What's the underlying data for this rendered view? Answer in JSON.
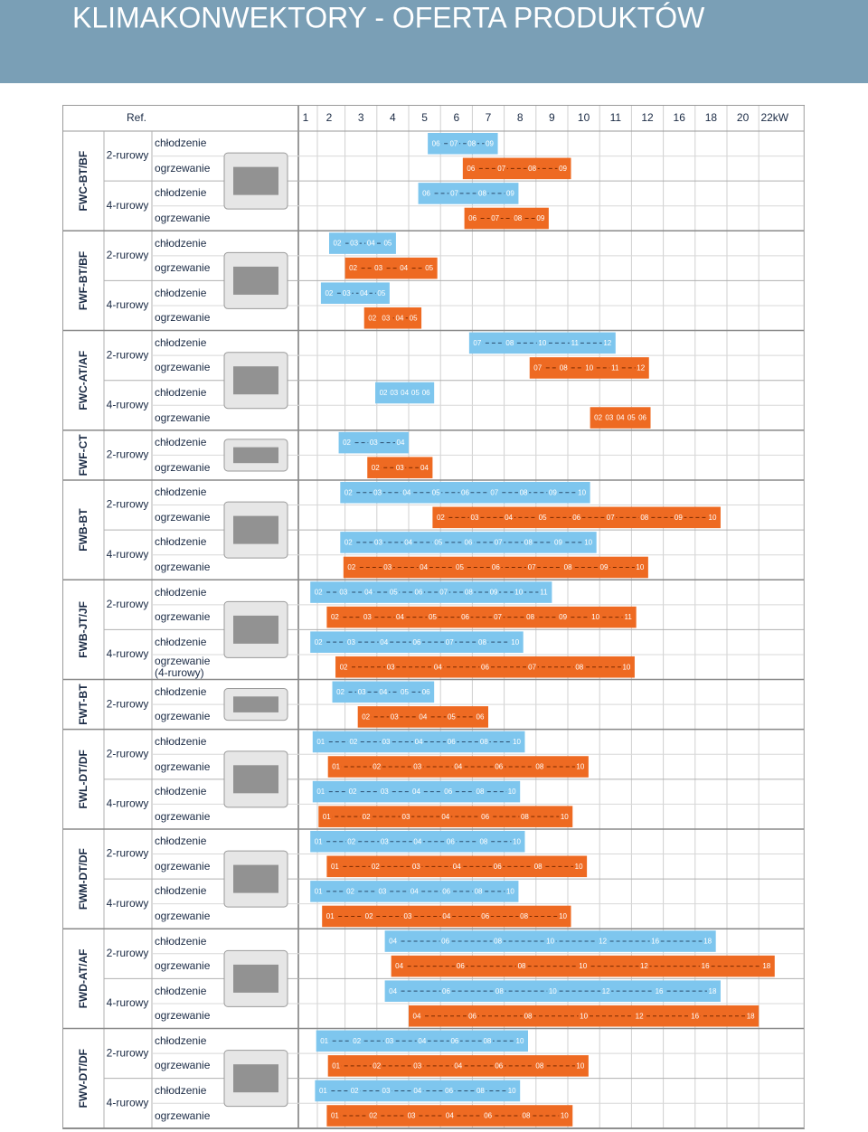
{
  "chart_data": {
    "type": "range",
    "title": "KLIMAKONWEKTORY - OFERTA PRODUKTÓW",
    "ref_label": "Ref.",
    "xticks": [
      1,
      2,
      3,
      4,
      5,
      6,
      7,
      8,
      9,
      10,
      11,
      12,
      16,
      18,
      20,
      {
        "value": 22,
        "label": "22kW"
      }
    ],
    "cooling_color": "#7ec6ee",
    "heating_color": "#ee6a22",
    "groups": [
      {
        "name": "FWC-BT/BF",
        "systems": [
          {
            "pipe": "2-rurowy",
            "rows": [
              {
                "mode": "chłodzenie",
                "range": [
                  5.1,
                  7.3
                ],
                "models": [
                  "06",
                  "07",
                  "08",
                  "09"
                ]
              },
              {
                "mode": "ogrzewanie",
                "range": [
                  6.2,
                  9.6
                ],
                "models": [
                  "06",
                  "07",
                  "08",
                  "09"
                ]
              }
            ]
          },
          {
            "pipe": "4-rurowy",
            "rows": [
              {
                "mode": "chłodzenie",
                "range": [
                  4.8,
                  7.95
                ],
                "models": [
                  "06",
                  "07",
                  "08",
                  "09"
                ]
              },
              {
                "mode": "ogrzewanie",
                "range": [
                  6.25,
                  8.9
                ],
                "models": [
                  "06",
                  "07",
                  "08",
                  "09"
                ]
              }
            ]
          }
        ]
      },
      {
        "name": "FWF-BT/BF",
        "systems": [
          {
            "pipe": "2-rurowy",
            "rows": [
              {
                "mode": "chłodzenie",
                "range": [
                  2.0,
                  4.1
                ],
                "models": [
                  "02",
                  "03",
                  "04",
                  "05"
                ]
              },
              {
                "mode": "ogrzewanie",
                "range": [
                  2.5,
                  5.4
                ],
                "models": [
                  "02",
                  "03",
                  "04",
                  "05"
                ]
              }
            ]
          },
          {
            "pipe": "4-rurowy",
            "rows": [
              {
                "mode": "chłodzenie",
                "range": [
                  1.65,
                  3.9
                ],
                "models": [
                  "02",
                  "03",
                  "04",
                  "05"
                ]
              },
              {
                "mode": "ogrzewanie",
                "range": [
                  3.1,
                  4.9
                ],
                "models": [
                  "02",
                  "03",
                  "04",
                  "05"
                ]
              }
            ]
          }
        ]
      },
      {
        "name": "FWC-AT/AF",
        "systems": [
          {
            "pipe": "2-rurowy",
            "rows": [
              {
                "mode": "chłodzenie",
                "range": [
                  6.4,
                  11
                ],
                "models": [
                  "07",
                  "08",
                  "10",
                  "11",
                  "12"
                ]
              },
              {
                "mode": "ogrzewanie",
                "range": [
                  8.3,
                  12.2
                ],
                "models": [
                  "07",
                  "08",
                  "10",
                  "11",
                  "12"
                ]
              }
            ]
          },
          {
            "pipe": "4-rurowy",
            "rows": [
              {
                "mode": "chłodzenie",
                "range": [
                  3.45,
                  5.3
                ],
                "models": [
                  "02",
                  "03",
                  "04",
                  "05",
                  "06"
                ]
              },
              {
                "mode": "ogrzewanie",
                "range": [
                  10.2,
                  12.4
                ],
                "models": [
                  "02",
                  "03",
                  "04",
                  "05",
                  "06"
                ]
              }
            ]
          }
        ]
      },
      {
        "name": "FWF-CT",
        "systems": [
          {
            "pipe": "2-rurowy",
            "rows": [
              {
                "mode": "chłodzenie",
                "range": [
                  2.3,
                  4.5
                ],
                "models": [
                  "02",
                  "03",
                  "04"
                ]
              },
              {
                "mode": "ogrzewanie",
                "range": [
                  3.2,
                  5.25
                ],
                "models": [
                  "02",
                  "03",
                  "04"
                ]
              }
            ]
          }
        ]
      },
      {
        "name": "FWB-BT",
        "systems": [
          {
            "pipe": "2-rurowy",
            "rows": [
              {
                "mode": "chłodzenie",
                "range": [
                  2.35,
                  10.2
                ],
                "models": [
                  "02",
                  "03",
                  "04",
                  "05",
                  "06",
                  "07",
                  "08",
                  "09",
                  "10"
                ]
              },
              {
                "mode": "ogrzewanie",
                "range": [
                  5.25,
                  18.6
                ],
                "models": [
                  "02",
                  "03",
                  "04",
                  "05",
                  "06",
                  "07",
                  "08",
                  "09",
                  "10"
                ]
              }
            ]
          },
          {
            "pipe": "4-rurowy",
            "rows": [
              {
                "mode": "chłodzenie",
                "range": [
                  2.35,
                  10.4
                ],
                "models": [
                  "02",
                  "03",
                  "04",
                  "05",
                  "06",
                  "07",
                  "08",
                  "09",
                  "10"
                ]
              },
              {
                "mode": "ogrzewanie",
                "range": [
                  2.45,
                  12.1
                ],
                "models": [
                  "02",
                  "03",
                  "04",
                  "05",
                  "06",
                  "07",
                  "08",
                  "09",
                  "10"
                ]
              }
            ]
          }
        ]
      },
      {
        "name": "FWB-JT/JF",
        "systems": [
          {
            "pipe": "2-rurowy",
            "rows": [
              {
                "mode": "chłodzenie",
                "range": [
                  1.2,
                  9.0
                ],
                "models": [
                  "02",
                  "03",
                  "04",
                  "05",
                  "06",
                  "07",
                  "08",
                  "09",
                  "10",
                  "11"
                ]
              },
              {
                "mode": "ogrzewanie",
                "range": [
                  1.9,
                  11.65
                ],
                "models": [
                  "02",
                  "03",
                  "04",
                  "05",
                  "06",
                  "07",
                  "08",
                  "09",
                  "10",
                  "11"
                ]
              }
            ]
          },
          {
            "pipe": "4-rurowy",
            "rows": [
              {
                "mode": "chłodzenie",
                "range": [
                  1.2,
                  8.1
                ],
                "models": [
                  "02",
                  "03",
                  "04",
                  "06",
                  "07",
                  "08",
                  "10"
                ]
              },
              {
                "mode": "ogrzewanie (4-rurowy)",
                "range": [
                  2.2,
                  11.6
                ],
                "models": [
                  "02",
                  "03",
                  "04",
                  "06",
                  "07",
                  "08",
                  "10"
                ]
              }
            ]
          }
        ]
      },
      {
        "name": "FWT-BT",
        "systems": [
          {
            "pipe": "2-rurowy",
            "rows": [
              {
                "mode": "chłodzenie",
                "range": [
                  2.1,
                  5.3
                ],
                "models": [
                  "02",
                  "03",
                  "04",
                  "05",
                  "06"
                ]
              },
              {
                "mode": "ogrzewanie",
                "range": [
                  2.9,
                  7.0
                ],
                "models": [
                  "02",
                  "03",
                  "04",
                  "05",
                  "06"
                ]
              }
            ]
          }
        ]
      },
      {
        "name": "FWL-DT/DF",
        "systems": [
          {
            "pipe": "2-rurowy",
            "rows": [
              {
                "mode": "chłodzenie",
                "range": [
                  1.3,
                  8.15
                ],
                "models": [
                  "01",
                  "02",
                  "03",
                  "04",
                  "06",
                  "08",
                  "10"
                ]
              },
              {
                "mode": "ogrzewanie",
                "range": [
                  1.95,
                  10.15
                ],
                "models": [
                  "01",
                  "02",
                  "03",
                  "04",
                  "06",
                  "08",
                  "10"
                ]
              }
            ]
          },
          {
            "pipe": "4-rurowy",
            "rows": [
              {
                "mode": "chłodzenie",
                "range": [
                  1.3,
                  8.0
                ],
                "models": [
                  "01",
                  "02",
                  "03",
                  "04",
                  "06",
                  "08",
                  "10"
                ]
              },
              {
                "mode": "ogrzewanie",
                "range": [
                  1.55,
                  9.65
                ],
                "models": [
                  "01",
                  "02",
                  "03",
                  "04",
                  "06",
                  "08",
                  "10"
                ]
              }
            ]
          }
        ]
      },
      {
        "name": "FWM-DT/DF",
        "systems": [
          {
            "pipe": "2-rurowy",
            "rows": [
              {
                "mode": "chłodzenie",
                "range": [
                  1.2,
                  8.15
                ],
                "models": [
                  "01",
                  "02",
                  "03",
                  "04",
                  "06",
                  "08",
                  "10"
                ]
              },
              {
                "mode": "ogrzewanie",
                "range": [
                  1.9,
                  10.1
                ],
                "models": [
                  "01",
                  "02",
                  "03",
                  "04",
                  "06",
                  "08",
                  "10"
                ]
              }
            ]
          },
          {
            "pipe": "4-rurowy",
            "rows": [
              {
                "mode": "chłodzenie",
                "range": [
                  1.2,
                  7.95
                ],
                "models": [
                  "01",
                  "02",
                  "03",
                  "04",
                  "06",
                  "08",
                  "10"
                ]
              },
              {
                "mode": "ogrzewanie",
                "range": [
                  1.7,
                  9.6
                ],
                "models": [
                  "01",
                  "02",
                  "03",
                  "04",
                  "06",
                  "08",
                  "10"
                ]
              }
            ]
          }
        ]
      },
      {
        "name": "FWD-AT/AF",
        "systems": [
          {
            "pipe": "2-rurowy",
            "rows": [
              {
                "mode": "chłodzenie",
                "range": [
                  3.75,
                  18.3
                ],
                "models": [
                  "04",
                  "06",
                  "08",
                  "10",
                  "12",
                  "16",
                  "18"
                ]
              },
              {
                "mode": "ogrzewanie",
                "range": [
                  3.95,
                  22
                ],
                "models": [
                  "04",
                  "06",
                  "08",
                  "10",
                  "12",
                  "16",
                  "18"
                ]
              }
            ]
          },
          {
            "pipe": "4-rurowy",
            "rows": [
              {
                "mode": "chłodzenie",
                "range": [
                  3.75,
                  18.6
                ],
                "models": [
                  "04",
                  "06",
                  "08",
                  "10",
                  "12",
                  "16",
                  "18"
                ]
              },
              {
                "mode": "ogrzewanie",
                "range": [
                  4.5,
                  21
                ],
                "models": [
                  "04",
                  "06",
                  "08",
                  "10",
                  "12",
                  "16",
                  "18"
                ]
              }
            ]
          }
        ]
      },
      {
        "name": "FWV-DT/DF",
        "systems": [
          {
            "pipe": "2-rurowy",
            "rows": [
              {
                "mode": "chłodzenie",
                "range": [
                  1.45,
                  8.25
                ],
                "models": [
                  "01",
                  "02",
                  "03",
                  "04",
                  "06",
                  "08",
                  "10"
                ]
              },
              {
                "mode": "ogrzewanie",
                "range": [
                  1.95,
                  10.15
                ],
                "models": [
                  "01",
                  "02",
                  "03",
                  "04",
                  "06",
                  "08",
                  "10"
                ]
              }
            ]
          },
          {
            "pipe": "4-rurowy",
            "rows": [
              {
                "mode": "chłodzenie",
                "range": [
                  1.4,
                  8.0
                ],
                "models": [
                  "01",
                  "02",
                  "03",
                  "04",
                  "06",
                  "08",
                  "10"
                ]
              },
              {
                "mode": "ogrzewanie",
                "range": [
                  1.9,
                  9.65
                ],
                "models": [
                  "01",
                  "02",
                  "03",
                  "04",
                  "06",
                  "08",
                  "10"
                ]
              }
            ]
          }
        ]
      }
    ]
  }
}
